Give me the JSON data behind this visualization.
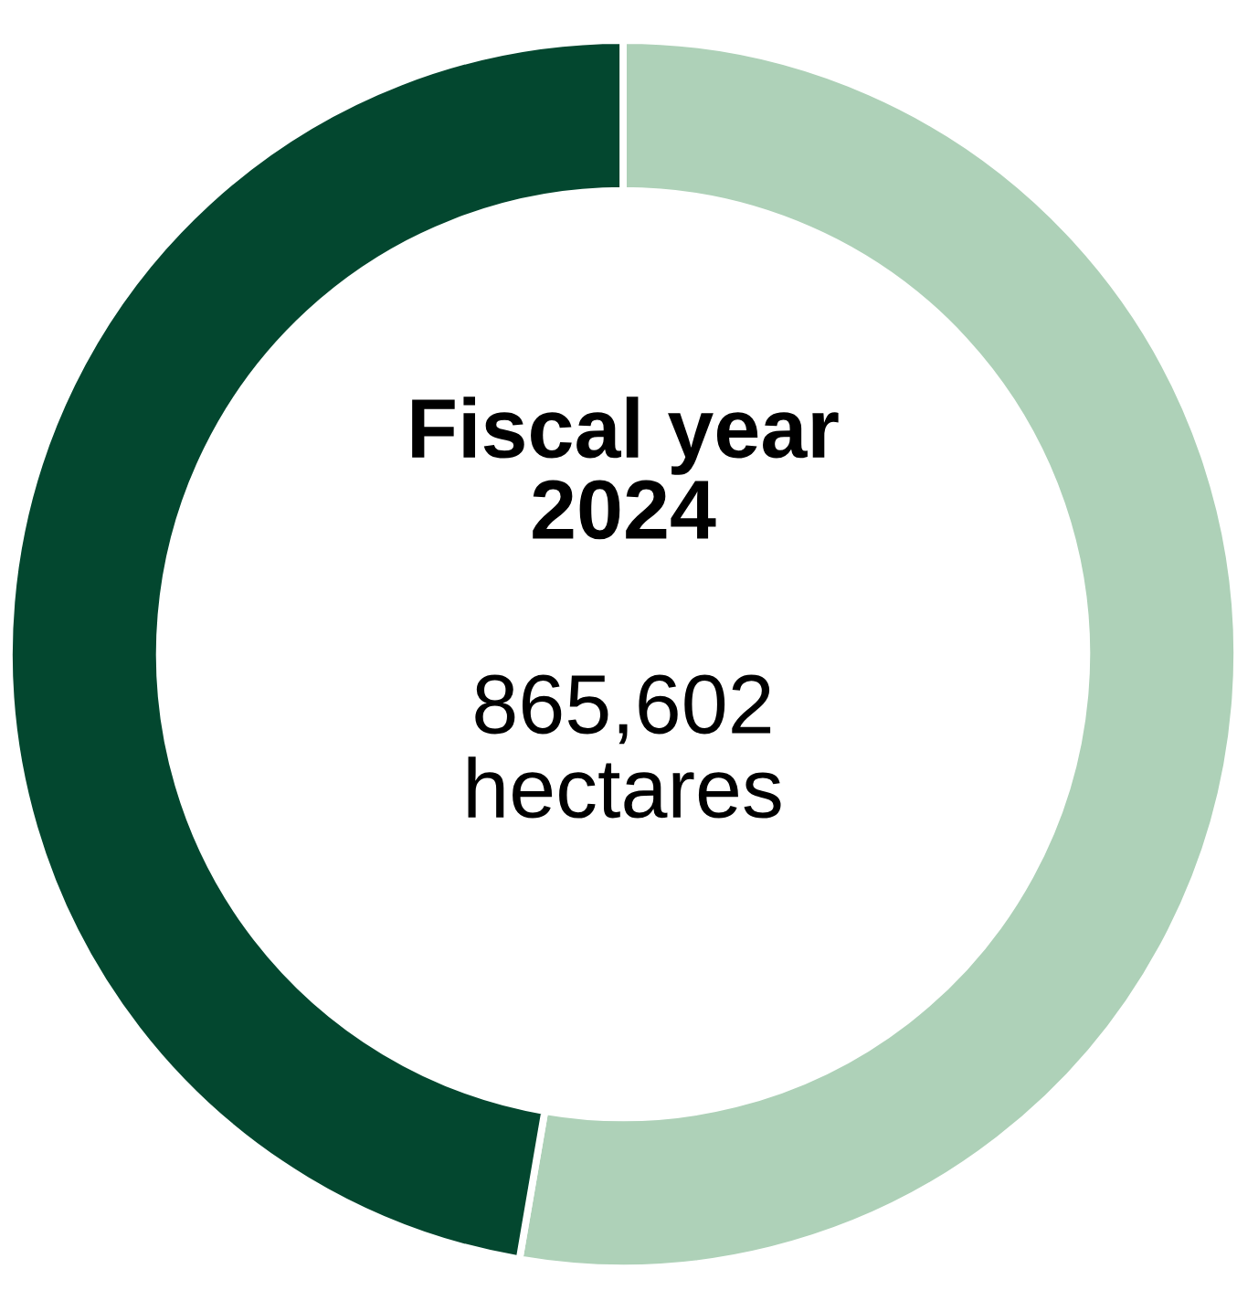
{
  "chart_data": {
    "type": "donut",
    "title": "Fiscal year\n2024",
    "annotations": [
      "865,602\nhectares"
    ],
    "categories": [
      null,
      null
    ],
    "values": [
      52.7,
      47.3
    ],
    "colors": [
      "#aed1b8",
      "#03472f"
    ]
  }
}
